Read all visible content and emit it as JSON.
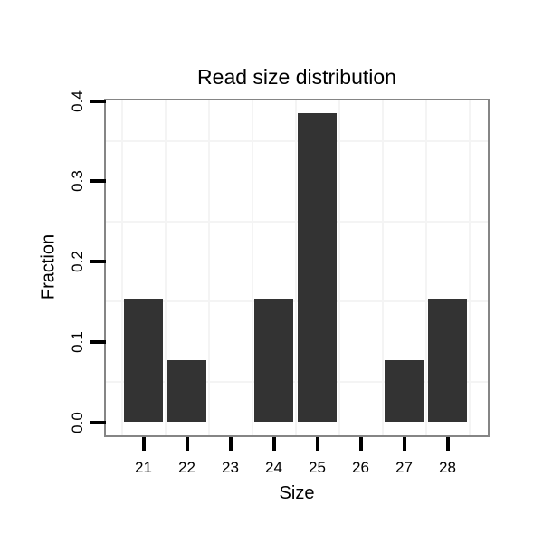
{
  "chart_data": {
    "type": "bar",
    "title": "Read size distribution",
    "xlabel": "Size",
    "ylabel": "Fraction",
    "categories": [
      "21",
      "22",
      "23",
      "24",
      "25",
      "26",
      "27",
      "28"
    ],
    "values": [
      0.154,
      0.077,
      0,
      0.154,
      0.385,
      0,
      0.077,
      0.154
    ],
    "y_tick_labels": [
      "0.0",
      "0.1",
      "0.2",
      "0.3",
      "0.4"
    ],
    "y_tick_values": [
      0.0,
      0.1,
      0.2,
      0.3,
      0.4
    ],
    "ylim": [
      0,
      0.42
    ],
    "legend": "none",
    "grid": "faint minor gridlines midway between ticks and between categories",
    "colors": {
      "bar": "#333333",
      "panel_border": "#858585",
      "gridline": "#f4f4f4",
      "tick": "#000000",
      "text": "#000000",
      "background": "#ffffff"
    }
  }
}
